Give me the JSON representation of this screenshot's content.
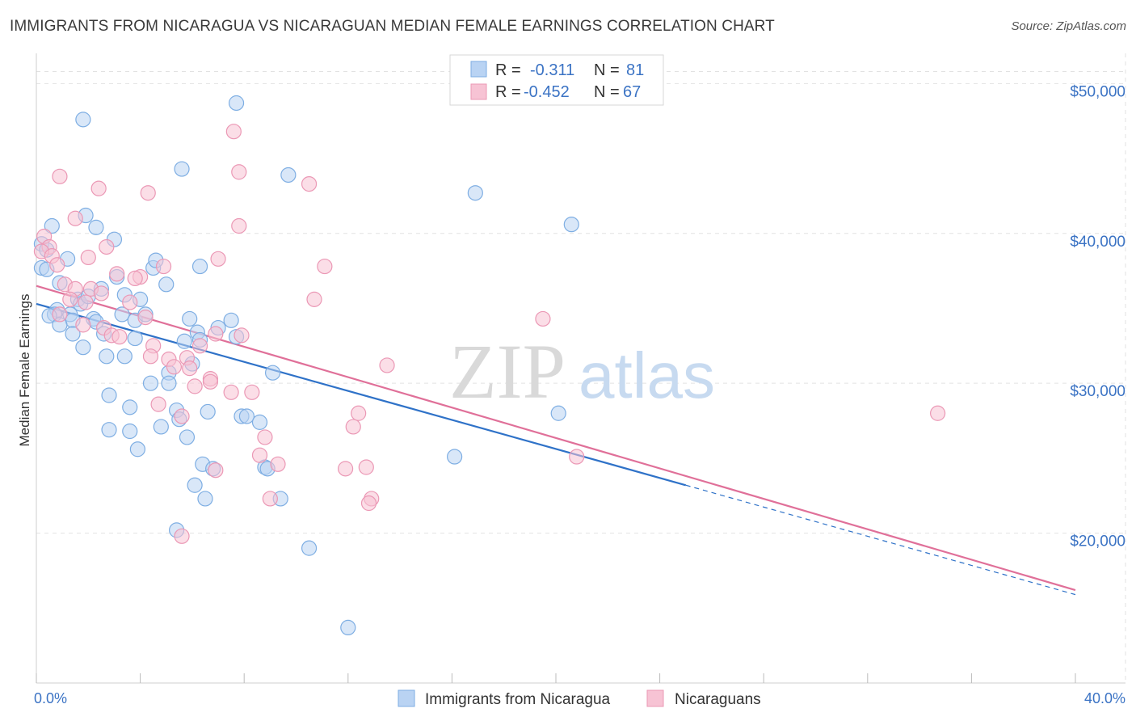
{
  "title": "IMMIGRANTS FROM NICARAGUA VS NICARAGUAN MEDIAN FEMALE EARNINGS CORRELATION CHART",
  "source": "Source: ZipAtlas.com",
  "watermark": {
    "zip": "ZIP",
    "atlas": "atlas"
  },
  "colors": {
    "blue_fill": "#b9d3f3",
    "blue_stroke": "#7eaee3",
    "blue_line": "#2f72c8",
    "pink_fill": "#f7c3d4",
    "pink_stroke": "#eb98b5",
    "pink_line": "#e07099",
    "tick_color": "#3b73c4",
    "grid": "#e2e2e2"
  },
  "legend_top": [
    {
      "r_label": "R =",
      "r_value": "-0.311",
      "n_label": "N =",
      "n_value": "81",
      "series": "blue"
    },
    {
      "r_label": "R =",
      "r_value": "-0.452",
      "n_label": "N =",
      "n_value": "67",
      "series": "pink"
    }
  ],
  "legend_bottom": [
    {
      "label": "Immigrants from Nicaragua",
      "series": "blue"
    },
    {
      "label": "Nicaraguans",
      "series": "pink"
    }
  ],
  "chart_data": {
    "type": "scatter",
    "title": "IMMIGRANTS FROM NICARAGUA VS NICARAGUAN MEDIAN FEMALE EARNINGS CORRELATION CHART",
    "xlabel": "",
    "ylabel": "Median Female Earnings",
    "xlim": [
      0,
      40
    ],
    "ylim": [
      10000,
      52000
    ],
    "x_tick_labels": [
      {
        "value": 0,
        "label": "0.0%"
      },
      {
        "value": 40,
        "label": "40.0%"
      }
    ],
    "y_tick_labels": [
      {
        "value": 20000,
        "label": "$20,000"
      },
      {
        "value": 30000,
        "label": "$30,000"
      },
      {
        "value": 40000,
        "label": "$40,000"
      },
      {
        "value": 50000,
        "label": "$50,000"
      }
    ],
    "grid": true,
    "legend_position": "top-center",
    "series": [
      {
        "name": "Immigrants from Nicaragua",
        "color": "blue",
        "trend": {
          "x0": 0,
          "y0": 35300,
          "x1": 25,
          "y1": 23200,
          "dashed_to_x": 40,
          "dashed_to_y": 15900
        },
        "points": [
          [
            1.8,
            47600
          ],
          [
            7.7,
            48700
          ],
          [
            5.6,
            44300
          ],
          [
            9.7,
            43900
          ],
          [
            16.9,
            42700
          ],
          [
            20.6,
            40600
          ],
          [
            0.6,
            40500
          ],
          [
            1.9,
            41200
          ],
          [
            2.3,
            40400
          ],
          [
            0.2,
            39300
          ],
          [
            0.4,
            38900
          ],
          [
            3.0,
            39600
          ],
          [
            1.2,
            38300
          ],
          [
            0.2,
            37700
          ],
          [
            0.4,
            37600
          ],
          [
            6.3,
            37800
          ],
          [
            4.5,
            37700
          ],
          [
            0.9,
            36700
          ],
          [
            3.1,
            37100
          ],
          [
            5.0,
            36600
          ],
          [
            2.5,
            36300
          ],
          [
            3.4,
            35900
          ],
          [
            1.6,
            35600
          ],
          [
            1.7,
            35300
          ],
          [
            4.0,
            35600
          ],
          [
            0.8,
            34900
          ],
          [
            0.7,
            34600
          ],
          [
            1.3,
            34600
          ],
          [
            0.5,
            34500
          ],
          [
            2.2,
            34300
          ],
          [
            1.4,
            34200
          ],
          [
            2.3,
            34100
          ],
          [
            3.3,
            34600
          ],
          [
            3.8,
            34200
          ],
          [
            4.2,
            34600
          ],
          [
            5.9,
            34300
          ],
          [
            7.5,
            34200
          ],
          [
            1.4,
            33300
          ],
          [
            2.6,
            33300
          ],
          [
            6.2,
            33400
          ],
          [
            7.7,
            33100
          ],
          [
            6.3,
            32900
          ],
          [
            1.8,
            32400
          ],
          [
            2.7,
            31800
          ],
          [
            3.4,
            31800
          ],
          [
            6.0,
            31300
          ],
          [
            5.1,
            30700
          ],
          [
            4.4,
            30000
          ],
          [
            5.1,
            30000
          ],
          [
            2.8,
            29200
          ],
          [
            3.6,
            28400
          ],
          [
            5.4,
            28200
          ],
          [
            6.6,
            28100
          ],
          [
            7.9,
            27800
          ],
          [
            8.1,
            27800
          ],
          [
            5.5,
            27600
          ],
          [
            8.6,
            27400
          ],
          [
            4.8,
            27100
          ],
          [
            2.8,
            26900
          ],
          [
            3.6,
            26800
          ],
          [
            5.8,
            26400
          ],
          [
            3.9,
            25600
          ],
          [
            16.1,
            25100
          ],
          [
            6.4,
            24600
          ],
          [
            8.8,
            24400
          ],
          [
            8.9,
            24300
          ],
          [
            6.1,
            23200
          ],
          [
            6.5,
            22300
          ],
          [
            9.4,
            22300
          ],
          [
            5.4,
            20200
          ],
          [
            10.5,
            19000
          ],
          [
            12.0,
            13700
          ],
          [
            20.1,
            28000
          ],
          [
            4.6,
            38200
          ],
          [
            2.0,
            35800
          ],
          [
            0.9,
            33900
          ],
          [
            7.0,
            33700
          ],
          [
            3.8,
            33000
          ],
          [
            5.7,
            32800
          ],
          [
            6.8,
            24300
          ],
          [
            9.1,
            30700
          ]
        ]
      },
      {
        "name": "Nicaraguans",
        "color": "pink",
        "trend": {
          "x0": 0,
          "y0": 36500,
          "x1": 40,
          "y1": 16200
        },
        "points": [
          [
            7.6,
            46800
          ],
          [
            7.8,
            44100
          ],
          [
            0.9,
            43800
          ],
          [
            2.4,
            43000
          ],
          [
            4.3,
            42700
          ],
          [
            10.5,
            43300
          ],
          [
            1.5,
            41000
          ],
          [
            7.8,
            40500
          ],
          [
            0.3,
            39800
          ],
          [
            0.5,
            39100
          ],
          [
            2.7,
            39100
          ],
          [
            0.2,
            38800
          ],
          [
            0.6,
            38500
          ],
          [
            2.0,
            38400
          ],
          [
            7.0,
            38300
          ],
          [
            0.8,
            37900
          ],
          [
            11.1,
            37800
          ],
          [
            4.9,
            37800
          ],
          [
            3.1,
            37300
          ],
          [
            4.0,
            37100
          ],
          [
            1.1,
            36600
          ],
          [
            1.5,
            36300
          ],
          [
            2.1,
            36300
          ],
          [
            2.5,
            36000
          ],
          [
            10.7,
            35600
          ],
          [
            1.9,
            35400
          ],
          [
            3.6,
            35400
          ],
          [
            0.9,
            34600
          ],
          [
            4.2,
            34400
          ],
          [
            19.5,
            34300
          ],
          [
            1.8,
            33900
          ],
          [
            2.6,
            33700
          ],
          [
            2.9,
            33200
          ],
          [
            3.2,
            33100
          ],
          [
            6.9,
            33300
          ],
          [
            7.9,
            33200
          ],
          [
            4.5,
            32500
          ],
          [
            6.3,
            32500
          ],
          [
            4.4,
            31800
          ],
          [
            5.1,
            31600
          ],
          [
            5.8,
            31700
          ],
          [
            5.9,
            31000
          ],
          [
            13.5,
            31200
          ],
          [
            5.3,
            31100
          ],
          [
            6.7,
            30300
          ],
          [
            6.1,
            29800
          ],
          [
            7.5,
            29400
          ],
          [
            8.3,
            29400
          ],
          [
            4.7,
            28600
          ],
          [
            12.4,
            28000
          ],
          [
            34.7,
            28000
          ],
          [
            5.6,
            27800
          ],
          [
            12.2,
            27100
          ],
          [
            8.8,
            26400
          ],
          [
            8.6,
            25200
          ],
          [
            20.8,
            25100
          ],
          [
            9.3,
            24600
          ],
          [
            11.9,
            24300
          ],
          [
            12.7,
            24400
          ],
          [
            6.9,
            24200
          ],
          [
            9.0,
            22300
          ],
          [
            12.9,
            22300
          ],
          [
            12.8,
            22000
          ],
          [
            5.6,
            19800
          ],
          [
            6.7,
            30100
          ],
          [
            1.3,
            35600
          ],
          [
            3.8,
            37000
          ]
        ]
      }
    ]
  }
}
